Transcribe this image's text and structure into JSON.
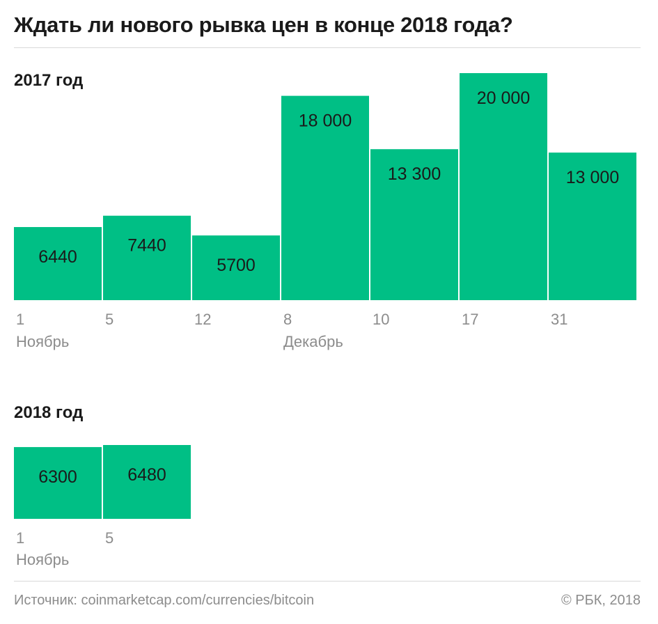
{
  "title": "Ждать ли нового рывка цен в конце 2018 года?",
  "colors": {
    "bar": "#00bf85",
    "text": "#1a1a1a",
    "muted": "#8c8c8c",
    "rule": "#d9d9d9"
  },
  "chart_data": [
    {
      "type": "bar",
      "title": "2017 год",
      "categories": [
        "1",
        "5",
        "12",
        "8",
        "10",
        "17",
        "31"
      ],
      "month_labels": [
        "Ноябрь",
        "",
        "",
        "Декабрь",
        "",
        "",
        ""
      ],
      "values": [
        6440,
        7440,
        5700,
        18000,
        13300,
        20000,
        13000
      ],
      "value_labels": [
        "6440",
        "7440",
        "5700",
        "18 000",
        "13 300",
        "20 000",
        "13 000"
      ],
      "ylim": [
        0,
        20000
      ]
    },
    {
      "type": "bar",
      "title": "2018 год",
      "categories": [
        "1",
        "5"
      ],
      "month_labels": [
        "Ноябрь",
        ""
      ],
      "values": [
        6300,
        6480
      ],
      "value_labels": [
        "6300",
        "6480"
      ],
      "ylim": [
        0,
        6480
      ]
    }
  ],
  "footer": {
    "source": "Источник: coinmarketcap.com/currencies/bitcoin",
    "copyright": "© РБК, 2018"
  }
}
